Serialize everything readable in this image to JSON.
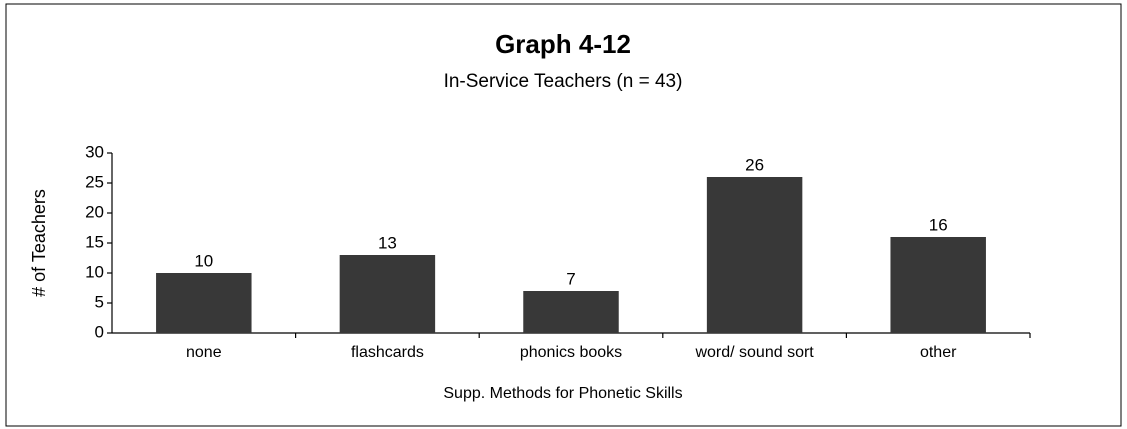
{
  "chart_data": {
    "type": "bar",
    "title": "Graph 4-12",
    "subtitle": "In-Service Teachers (n = 43)",
    "x_label": "Supp. Methods for Phonetic Skills",
    "y_label": "# of Teachers",
    "categories": [
      "none",
      "flashcards",
      "phonics books",
      "word/ sound sort",
      "other"
    ],
    "values": [
      10,
      13,
      7,
      26,
      16
    ],
    "color": "#383838",
    "ylim": [
      0,
      30
    ],
    "yticks": [
      0,
      5,
      10,
      15,
      20,
      25,
      30
    ],
    "grid": false
  }
}
